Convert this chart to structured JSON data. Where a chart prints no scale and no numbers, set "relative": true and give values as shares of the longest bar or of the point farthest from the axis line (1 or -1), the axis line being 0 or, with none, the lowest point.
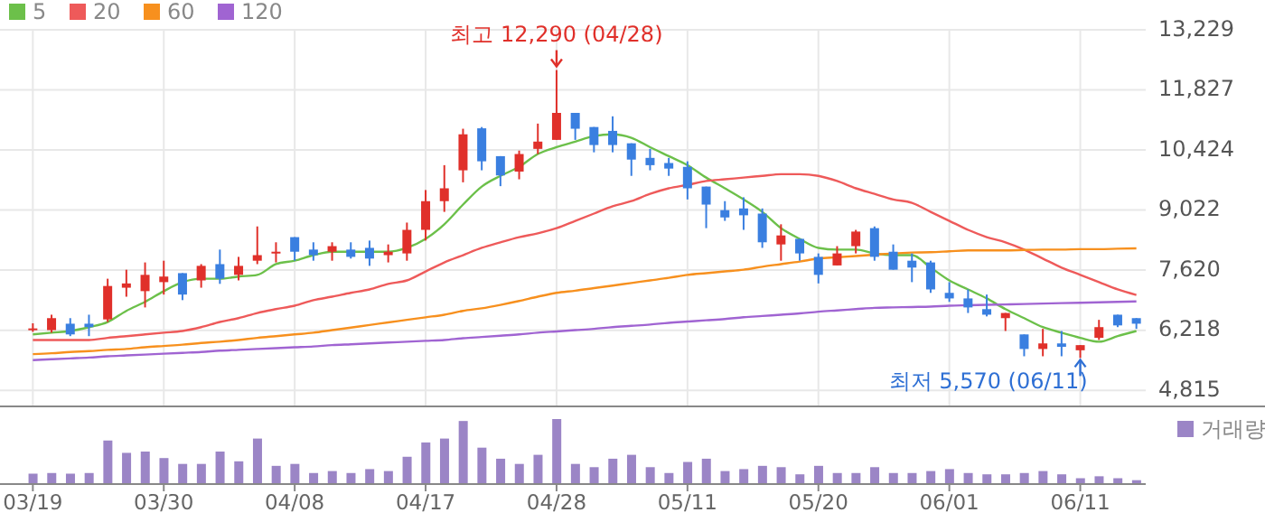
{
  "chart_data": [
    {
      "type": "candlestick",
      "categories": [
        "03/19",
        null,
        null,
        null,
        null,
        null,
        null,
        "03/30",
        null,
        null,
        null,
        null,
        null,
        null,
        "04/08",
        null,
        null,
        null,
        null,
        null,
        null,
        "04/17",
        null,
        null,
        null,
        null,
        null,
        null,
        "04/28",
        null,
        null,
        null,
        null,
        null,
        null,
        "05/11",
        null,
        null,
        null,
        null,
        null,
        null,
        "05/20",
        null,
        null,
        null,
        null,
        null,
        null,
        "06/01",
        null,
        null,
        null,
        null,
        null,
        null,
        "06/11",
        null,
        null,
        null
      ],
      "ohlc": [
        [
          6250,
          6380,
          6180,
          6260
        ],
        [
          6220,
          6580,
          6160,
          6500
        ],
        [
          6370,
          6500,
          6080,
          6120
        ],
        [
          6370,
          6580,
          6080,
          6290
        ],
        [
          6470,
          7420,
          6410,
          7250
        ],
        [
          7210,
          7630,
          7000,
          7310
        ],
        [
          7130,
          7800,
          6750,
          7510
        ],
        [
          7340,
          7840,
          7050,
          7470
        ],
        [
          7550,
          7550,
          6920,
          7050
        ],
        [
          7380,
          7760,
          7210,
          7720
        ],
        [
          7760,
          8100,
          7300,
          7420
        ],
        [
          7510,
          7930,
          7380,
          7720
        ],
        [
          7840,
          8640,
          7760,
          7970
        ],
        [
          8010,
          8270,
          7800,
          8050
        ],
        [
          8390,
          8390,
          7840,
          8050
        ],
        [
          8100,
          8270,
          7840,
          7970
        ],
        [
          8050,
          8270,
          7840,
          8180
        ],
        [
          8100,
          8270,
          7890,
          7930
        ],
        [
          8140,
          8310,
          7720,
          7890
        ],
        [
          7970,
          8220,
          7800,
          8050
        ],
        [
          8010,
          8730,
          7840,
          8560
        ],
        [
          8560,
          9490,
          8310,
          9230
        ],
        [
          9230,
          10070,
          8980,
          9530
        ],
        [
          9950,
          10920,
          9670,
          10790
        ],
        [
          10930,
          10960,
          9950,
          10160
        ],
        [
          10280,
          10280,
          9580,
          9830
        ],
        [
          9920,
          10410,
          9740,
          10330
        ],
        [
          10450,
          11040,
          10330,
          10620
        ],
        [
          10660,
          12290,
          10660,
          11290
        ],
        [
          11290,
          11290,
          10660,
          10920
        ],
        [
          10960,
          10960,
          10370,
          10540
        ],
        [
          10870,
          11210,
          10370,
          10540
        ],
        [
          10580,
          10580,
          9820,
          10200
        ],
        [
          10240,
          10450,
          9950,
          10070
        ],
        [
          10120,
          10240,
          9820,
          9990
        ],
        [
          10030,
          10160,
          9270,
          9530
        ],
        [
          9570,
          9570,
          8600,
          9150
        ],
        [
          9020,
          9230,
          8770,
          8850
        ],
        [
          9060,
          9320,
          8560,
          8900
        ],
        [
          8940,
          9060,
          8140,
          8270
        ],
        [
          8220,
          8690,
          7840,
          8430
        ],
        [
          8350,
          8350,
          7840,
          8010
        ],
        [
          7930,
          8010,
          7310,
          7510
        ],
        [
          7730,
          8180,
          7730,
          8010
        ],
        [
          8180,
          8560,
          8010,
          8520
        ],
        [
          8600,
          8640,
          7840,
          7930
        ],
        [
          8050,
          8220,
          7630,
          7630
        ],
        [
          7840,
          8010,
          7340,
          7680
        ],
        [
          7800,
          7840,
          7090,
          7170
        ],
        [
          7090,
          7340,
          6880,
          6960
        ],
        [
          6960,
          7170,
          6620,
          6750
        ],
        [
          6710,
          7050,
          6540,
          6580
        ],
        [
          6500,
          6620,
          6200,
          6620
        ],
        [
          6120,
          6120,
          5610,
          5780
        ],
        [
          5780,
          6250,
          5610,
          5910
        ],
        [
          5910,
          6200,
          5610,
          5830
        ],
        [
          5750,
          5870,
          5570,
          5870
        ],
        [
          6040,
          6460,
          5990,
          6290
        ],
        [
          6580,
          6580,
          6290,
          6330
        ],
        [
          6500,
          6500,
          6250,
          6370
        ]
      ],
      "series": [
        {
          "name": "5",
          "type": "line",
          "color": "#6cc04a",
          "values": [
            6120,
            6160,
            6200,
            6290,
            6410,
            6670,
            6880,
            7130,
            7340,
            7420,
            7420,
            7470,
            7510,
            7760,
            7840,
            7970,
            8050,
            8050,
            8050,
            8050,
            8140,
            8350,
            8690,
            9150,
            9570,
            9820,
            10030,
            10330,
            10490,
            10620,
            10750,
            10790,
            10710,
            10490,
            10280,
            10070,
            9780,
            9530,
            9270,
            8980,
            8600,
            8350,
            8140,
            8100,
            8100,
            8010,
            7970,
            7970,
            7680,
            7380,
            7170,
            6960,
            6710,
            6500,
            6290,
            6160,
            6040,
            5950,
            6080,
            6200
          ]
        },
        {
          "name": "20",
          "type": "line",
          "color": "#ee5a5a",
          "values": [
            5990,
            5990,
            5990,
            5990,
            6040,
            6080,
            6120,
            6160,
            6200,
            6290,
            6410,
            6500,
            6620,
            6710,
            6790,
            6920,
            7000,
            7090,
            7170,
            7300,
            7380,
            7590,
            7800,
            7970,
            8140,
            8270,
            8390,
            8480,
            8600,
            8770,
            8940,
            9110,
            9230,
            9400,
            9530,
            9610,
            9700,
            9740,
            9780,
            9820,
            9860,
            9860,
            9820,
            9700,
            9530,
            9400,
            9270,
            9190,
            8980,
            8770,
            8560,
            8390,
            8270,
            8100,
            7890,
            7680,
            7510,
            7340,
            7170,
            7040
          ]
        },
        {
          "name": "60",
          "type": "line",
          "color": "#f7901e",
          "values": [
            5660,
            5680,
            5710,
            5730,
            5760,
            5780,
            5820,
            5850,
            5880,
            5920,
            5950,
            5990,
            6040,
            6080,
            6120,
            6160,
            6220,
            6280,
            6340,
            6400,
            6460,
            6520,
            6580,
            6670,
            6730,
            6810,
            6900,
            7000,
            7090,
            7140,
            7200,
            7260,
            7320,
            7380,
            7440,
            7510,
            7550,
            7590,
            7630,
            7700,
            7760,
            7820,
            7890,
            7920,
            7950,
            7980,
            8010,
            8030,
            8040,
            8060,
            8080,
            8080,
            8080,
            8090,
            8100,
            8100,
            8110,
            8110,
            8120,
            8130
          ]
        },
        {
          "name": "120",
          "type": "line",
          "color": "#a064d2",
          "values": [
            5520,
            5540,
            5560,
            5580,
            5610,
            5630,
            5650,
            5670,
            5690,
            5710,
            5740,
            5760,
            5780,
            5800,
            5820,
            5840,
            5870,
            5890,
            5910,
            5930,
            5950,
            5970,
            5990,
            6030,
            6060,
            6090,
            6120,
            6160,
            6190,
            6220,
            6250,
            6290,
            6320,
            6350,
            6390,
            6420,
            6450,
            6480,
            6520,
            6550,
            6580,
            6610,
            6650,
            6680,
            6710,
            6740,
            6750,
            6760,
            6770,
            6790,
            6800,
            6810,
            6820,
            6830,
            6840,
            6850,
            6860,
            6870,
            6880,
            6890
          ]
        }
      ],
      "ylim": [
        4440,
        13229
      ],
      "yticks": [
        {
          "value": 4815,
          "label": "4,815"
        },
        {
          "value": 6218,
          "label": "6,218"
        },
        {
          "value": 7620,
          "label": "7,620"
        },
        {
          "value": 9022,
          "label": "9,022"
        },
        {
          "value": 10424,
          "label": "10,424"
        },
        {
          "value": 11827,
          "label": "11,827"
        },
        {
          "value": 13229,
          "label": "13,229"
        }
      ],
      "grid": true,
      "legend": "top left",
      "tick_labels": "y",
      "annotations": [
        {
          "text": "최고 12,290 (04/28)",
          "x": "04/28",
          "y": 12290
        },
        {
          "text": "최저 5,570 (06/11)",
          "x": "06/11",
          "y": 5570
        }
      ]
    },
    {
      "type": "bar",
      "relative": true,
      "categories": [
        "03/19",
        null,
        null,
        null,
        null,
        null,
        null,
        "03/30",
        null,
        null,
        null,
        null,
        null,
        null,
        "04/08",
        null,
        null,
        null,
        null,
        null,
        null,
        "04/17",
        null,
        null,
        null,
        null,
        null,
        null,
        "04/28",
        null,
        null,
        null,
        null,
        null,
        null,
        "05/11",
        null,
        null,
        null,
        null,
        null,
        null,
        "05/20",
        null,
        null,
        null,
        null,
        null,
        null,
        "06/01",
        null,
        null,
        null,
        null,
        null,
        null,
        "06/11",
        null,
        null,
        null
      ],
      "series": [
        {
          "name": "거래량",
          "color": "#9b85c6",
          "values": [
            0.16,
            0.17,
            0.16,
            0.17,
            0.67,
            0.48,
            0.5,
            0.4,
            0.31,
            0.31,
            0.5,
            0.35,
            0.7,
            0.28,
            0.31,
            0.17,
            0.2,
            0.17,
            0.23,
            0.2,
            0.42,
            0.64,
            0.7,
            0.97,
            0.56,
            0.39,
            0.31,
            0.45,
            1,
            0.31,
            0.26,
            0.39,
            0.45,
            0.26,
            0.17,
            0.34,
            0.39,
            0.2,
            0.23,
            0.28,
            0.26,
            0.15,
            0.28,
            0.17,
            0.17,
            0.26,
            0.17,
            0.17,
            0.2,
            0.23,
            0.17,
            0.15,
            0.15,
            0.17,
            0.2,
            0.15,
            0.09,
            0.12,
            0.09,
            0.06
          ]
        }
      ],
      "legend": "top right",
      "tick_labels": "x"
    }
  ]
}
